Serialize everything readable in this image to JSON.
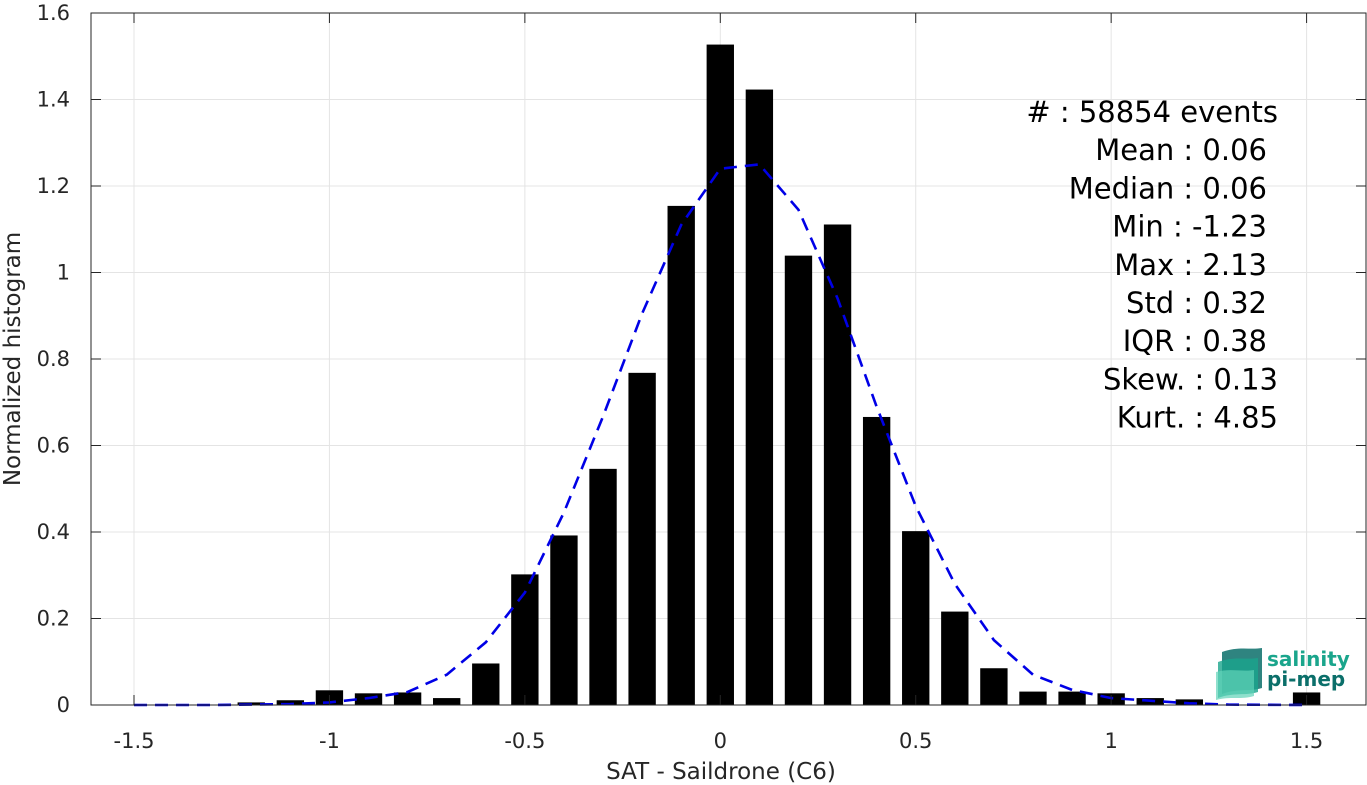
{
  "chart_data": {
    "type": "bar",
    "xlabel": "SAT - Saildrone (C6)",
    "ylabel": "Normalized histogram",
    "xlim": [
      -1.5,
      1.5
    ],
    "ylim": [
      0,
      1.6
    ],
    "xticks": [
      "-1.5",
      "-1",
      "-0.5",
      "0",
      "0.5",
      "1",
      "1.5"
    ],
    "yticks": [
      "0",
      "0.2",
      "0.4",
      "0.6",
      "0.8",
      "1",
      "1.2",
      "1.4",
      "1.6"
    ],
    "grid": true,
    "bar_color": "#000000",
    "bins": [
      {
        "x": -1.5,
        "y": 0.0
      },
      {
        "x": -1.4,
        "y": 0.0
      },
      {
        "x": -1.3,
        "y": 0.0
      },
      {
        "x": -1.2,
        "y": 0.006
      },
      {
        "x": -1.1,
        "y": 0.011
      },
      {
        "x": -1.0,
        "y": 0.034
      },
      {
        "x": -0.9,
        "y": 0.027
      },
      {
        "x": -0.8,
        "y": 0.029
      },
      {
        "x": -0.7,
        "y": 0.016
      },
      {
        "x": -0.6,
        "y": 0.096
      },
      {
        "x": -0.5,
        "y": 0.302
      },
      {
        "x": -0.4,
        "y": 0.392
      },
      {
        "x": -0.3,
        "y": 0.546
      },
      {
        "x": -0.2,
        "y": 0.768
      },
      {
        "x": -0.1,
        "y": 1.154
      },
      {
        "x": 0.0,
        "y": 1.527
      },
      {
        "x": 0.1,
        "y": 1.423
      },
      {
        "x": 0.2,
        "y": 1.039
      },
      {
        "x": 0.3,
        "y": 1.111
      },
      {
        "x": 0.4,
        "y": 0.666
      },
      {
        "x": 0.5,
        "y": 0.402
      },
      {
        "x": 0.6,
        "y": 0.216
      },
      {
        "x": 0.7,
        "y": 0.085
      },
      {
        "x": 0.8,
        "y": 0.031
      },
      {
        "x": 0.9,
        "y": 0.031
      },
      {
        "x": 1.0,
        "y": 0.027
      },
      {
        "x": 1.1,
        "y": 0.016
      },
      {
        "x": 1.2,
        "y": 0.013
      },
      {
        "x": 1.3,
        "y": 0.0
      },
      {
        "x": 1.4,
        "y": 0.0
      },
      {
        "x": 1.5,
        "y": 0.029
      }
    ],
    "fit_curve": {
      "style": "dashed",
      "color": "#0000e6",
      "points": [
        {
          "x": -1.5,
          "y": 0.0
        },
        {
          "x": -1.3,
          "y": 0.0
        },
        {
          "x": -1.1,
          "y": 0.002
        },
        {
          "x": -1.0,
          "y": 0.006
        },
        {
          "x": -0.9,
          "y": 0.016
        },
        {
          "x": -0.8,
          "y": 0.03
        },
        {
          "x": -0.7,
          "y": 0.07
        },
        {
          "x": -0.6,
          "y": 0.145
        },
        {
          "x": -0.5,
          "y": 0.26
        },
        {
          "x": -0.4,
          "y": 0.445
        },
        {
          "x": -0.3,
          "y": 0.667
        },
        {
          "x": -0.2,
          "y": 0.905
        },
        {
          "x": -0.1,
          "y": 1.11
        },
        {
          "x": 0.0,
          "y": 1.24
        },
        {
          "x": 0.1,
          "y": 1.25
        },
        {
          "x": 0.2,
          "y": 1.145
        },
        {
          "x": 0.3,
          "y": 0.94
        },
        {
          "x": 0.4,
          "y": 0.69
        },
        {
          "x": 0.5,
          "y": 0.46
        },
        {
          "x": 0.6,
          "y": 0.28
        },
        {
          "x": 0.7,
          "y": 0.15
        },
        {
          "x": 0.8,
          "y": 0.07
        },
        {
          "x": 0.9,
          "y": 0.035
        },
        {
          "x": 1.0,
          "y": 0.016
        },
        {
          "x": 1.1,
          "y": 0.01
        },
        {
          "x": 1.2,
          "y": 0.004
        },
        {
          "x": 1.3,
          "y": 0.001
        },
        {
          "x": 1.5,
          "y": 0.0
        }
      ]
    }
  },
  "stats": [
    "#  : 58854 events",
    "Mean : 0.06",
    "Median : 0.06",
    "Min : -1.23",
    "Max : 2.13",
    "Std : 0.32",
    "IQR : 0.38",
    "Skew. : 0.13",
    "Kurt. : 4.85"
  ],
  "logo": {
    "line1": "salinity",
    "line2": "pi-mep",
    "color1": "#1aa58c",
    "color2": "#0b6f6a"
  }
}
